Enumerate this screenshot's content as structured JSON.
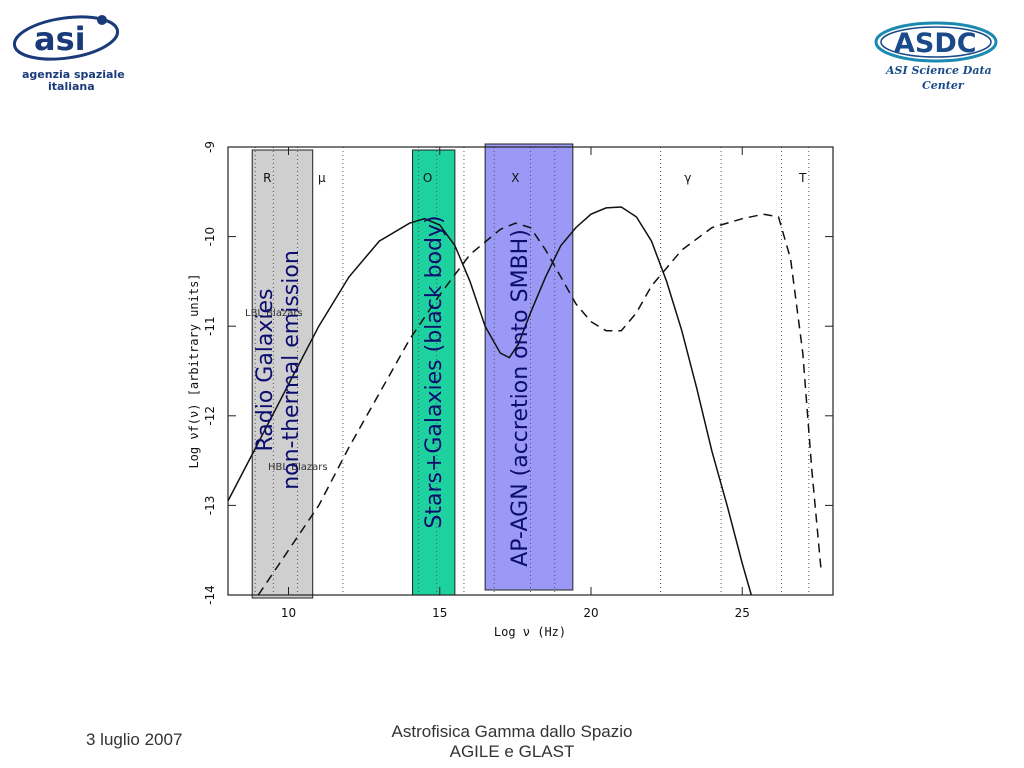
{
  "logos": {
    "asi": {
      "name": "asi",
      "line1": "agenzia spaziale",
      "line2": "italiana",
      "color": "#1a3a7a"
    },
    "asdc": {
      "name": "ASDC",
      "line1": "ASI Science Data",
      "line2": "Center",
      "color": "#1a4a8a"
    }
  },
  "footer": {
    "date": "3 luglio 2007",
    "title_line1": "Astrofisica Gamma dallo Spazio",
    "title_line2": "AGILE e GLAST"
  },
  "chart_data": {
    "type": "line",
    "xlabel": "Log ν (Hz)",
    "ylabel": "Log νf(ν) [arbitrary units]",
    "xlim": [
      8,
      28
    ],
    "ylim": [
      -14,
      -9
    ],
    "x_ticks": [
      10,
      15,
      20,
      25
    ],
    "y_ticks": [
      -9,
      -10,
      -11,
      -12,
      -13,
      -14
    ],
    "band_labels": [
      "R",
      "μ",
      "O",
      "X",
      "γ",
      "T"
    ],
    "band_label_x": [
      9.3,
      11.1,
      14.6,
      17.5,
      23.2,
      27.0
    ],
    "band_lines_x": [
      8.9,
      9.5,
      10.3,
      11.8,
      14.3,
      14.9,
      15.8,
      16.8,
      18.0,
      18.8,
      22.3,
      24.3,
      26.3,
      27.2
    ],
    "series": [
      {
        "style": "solid",
        "x": [
          8.0,
          9.0,
          10.0,
          11.0,
          12.0,
          13.0,
          14.0,
          14.5,
          15.0,
          15.5,
          16.0,
          16.5,
          17.0,
          17.3,
          17.6,
          18.0,
          18.5,
          19.0,
          19.5,
          20.0,
          20.5,
          21.0,
          21.5,
          22.0,
          22.5,
          23.0,
          23.5,
          24.0,
          24.5,
          25.0,
          25.3
        ],
        "y": [
          -12.95,
          -12.3,
          -11.65,
          -11.0,
          -10.45,
          -10.05,
          -9.85,
          -9.8,
          -9.87,
          -10.1,
          -10.5,
          -11.0,
          -11.3,
          -11.35,
          -11.2,
          -10.85,
          -10.45,
          -10.1,
          -9.9,
          -9.75,
          -9.68,
          -9.67,
          -9.78,
          -10.05,
          -10.5,
          -11.05,
          -11.7,
          -12.4,
          -13.0,
          -13.65,
          -14.0
        ]
      },
      {
        "style": "dashed",
        "x": [
          9.0,
          10.0,
          11.0,
          12.0,
          13.0,
          14.0,
          15.0,
          16.0,
          17.0,
          17.5,
          18.0,
          18.5,
          19.0,
          19.5,
          20.0,
          20.5,
          21.0,
          21.5,
          22.0,
          23.0,
          24.0,
          25.0,
          25.7,
          26.2,
          26.6,
          27.0,
          27.3,
          27.6
        ],
        "y": [
          -14.0,
          -13.5,
          -13.0,
          -12.35,
          -11.75,
          -11.15,
          -10.65,
          -10.2,
          -9.92,
          -9.85,
          -9.9,
          -10.15,
          -10.45,
          -10.75,
          -10.95,
          -11.05,
          -11.05,
          -10.85,
          -10.55,
          -10.15,
          -9.9,
          -9.8,
          -9.75,
          -9.78,
          -10.25,
          -11.3,
          -12.6,
          -13.7
        ]
      }
    ],
    "annotations": [
      "LBL Blazars",
      "HBL Blazars"
    ],
    "highlight_bands": [
      {
        "label_line1": "Radio Galaxies",
        "label_line2": "non-thermal emission",
        "x_from": 8.8,
        "x_to": 10.8,
        "color": "#cfcfcf"
      },
      {
        "label_line1": "Stars+Galaxies (black body)",
        "x_from": 14.1,
        "x_to": 15.5,
        "color": "#1ed2a0"
      },
      {
        "label_line1": "AP-AGN (accretion onto SMBH)",
        "x_from": 16.5,
        "x_to": 19.4,
        "color": "#9a9af6"
      }
    ]
  }
}
